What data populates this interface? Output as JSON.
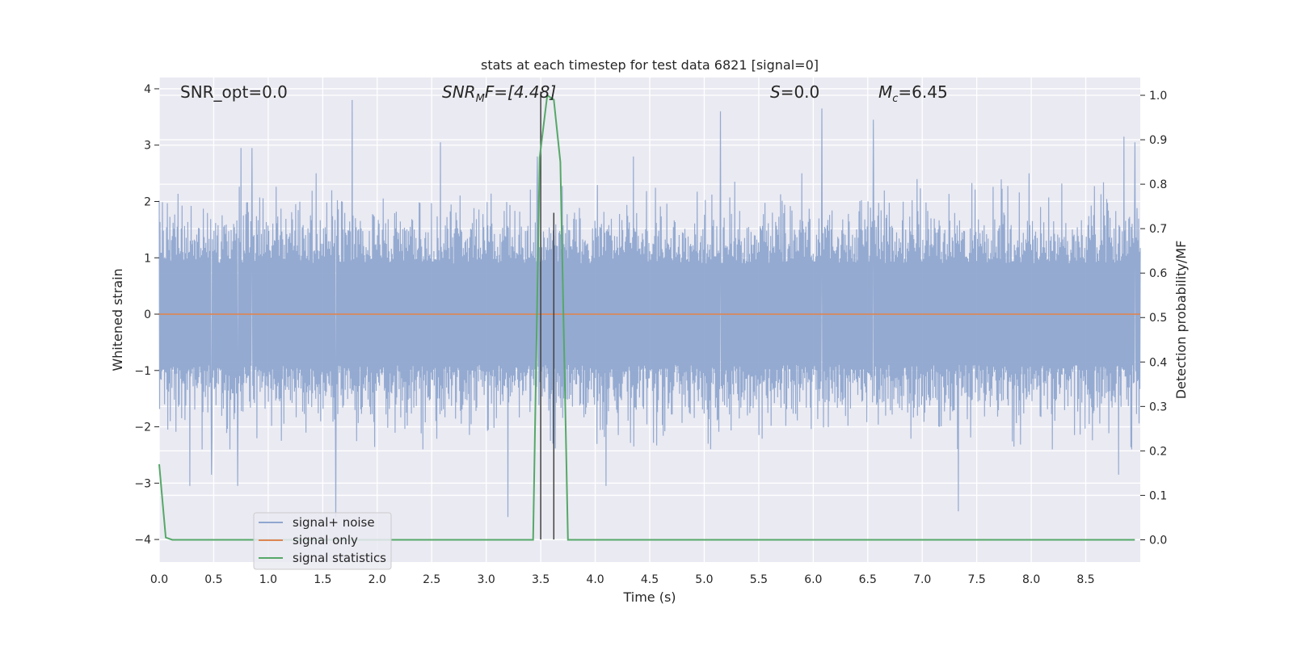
{
  "chart_data": {
    "type": "line",
    "title": "stats at each timestep for test data 6821 [signal=0]",
    "xlabel": "Time (s)",
    "ylabel": "Whitened strain",
    "ylabel_right": "Detection probability/MF",
    "xlim": [
      0.0,
      9.0
    ],
    "ylim": [
      -4.4,
      4.2
    ],
    "ylim_right": [
      -0.05,
      1.04
    ],
    "x_ticks": [
      "0.0",
      "0.5",
      "1.0",
      "1.5",
      "2.0",
      "2.5",
      "3.0",
      "3.5",
      "4.0",
      "4.5",
      "5.0",
      "5.5",
      "6.0",
      "6.5",
      "7.0",
      "7.5",
      "8.0",
      "8.5"
    ],
    "y_ticks": [
      "4",
      "3",
      "2",
      "1",
      "0",
      "−1",
      "−2",
      "−3",
      "−4"
    ],
    "y_right_ticks": [
      "1.0",
      "0.9",
      "0.8",
      "0.7",
      "0.6",
      "0.5",
      "0.4",
      "0.3",
      "0.2",
      "0.1",
      "0.0"
    ],
    "grid": true,
    "legend_position": "lower-left",
    "annotations": {
      "snr_opt": "SNR_opt=0.0",
      "snr_mf_base": "SNR",
      "snr_mf_sub": "M",
      "snr_mf_rest": "F=[4.48]",
      "s_var": "S",
      "s_val": "=0.0",
      "mc_var": "M",
      "mc_sub": "c",
      "mc_val": "=6.45"
    },
    "series": [
      {
        "name": "signal+ noise",
        "color": "#8fa6cf",
        "kind": "whitened-noise",
        "typical_envelope": [
          -1.8,
          1.9
        ],
        "peaks": [
          {
            "x": 1.77,
            "y": 3.8
          },
          {
            "x": 2.58,
            "y": 3.05
          },
          {
            "x": 5.15,
            "y": 3.6
          },
          {
            "x": 6.08,
            "y": 3.65
          },
          {
            "x": 6.55,
            "y": 3.45
          },
          {
            "x": 8.85,
            "y": 3.15
          },
          {
            "x": 0.75,
            "y": 2.95
          },
          {
            "x": 0.85,
            "y": 2.95
          },
          {
            "x": 3.47,
            "y": 2.8
          },
          {
            "x": 8.95,
            "y": 3.05
          },
          {
            "x": 4.35,
            "y": 2.8
          }
        ],
        "troughs": [
          {
            "x": 1.62,
            "y": -3.6
          },
          {
            "x": 3.2,
            "y": -3.6
          },
          {
            "x": 7.33,
            "y": -3.5
          },
          {
            "x": 0.28,
            "y": -3.05
          },
          {
            "x": 0.72,
            "y": -3.05
          },
          {
            "x": 4.1,
            "y": -3.05
          },
          {
            "x": 8.8,
            "y": -2.85
          },
          {
            "x": 0.48,
            "y": -2.85
          }
        ]
      },
      {
        "name": "signal only",
        "color": "#dd8452",
        "x": [
          0.0,
          9.0
        ],
        "y": [
          0.0,
          0.0
        ]
      },
      {
        "name": "signal statistics",
        "color": "#55a868",
        "axis": "right",
        "x": [
          0.0,
          0.06,
          0.12,
          3.43,
          3.49,
          3.56,
          3.62,
          3.68,
          3.75,
          3.8,
          8.95
        ],
        "y": [
          0.17,
          0.005,
          0.0,
          0.0,
          0.86,
          1.0,
          0.99,
          0.85,
          0.0,
          0.0,
          0.0
        ]
      }
    ],
    "vertical_markers": [
      {
        "x": 3.5,
        "y_range": [
          -4.0,
          3.95
        ],
        "color": "#404040"
      },
      {
        "x": 3.62,
        "y_range": [
          -4.0,
          1.8
        ],
        "color": "#404040"
      }
    ]
  }
}
